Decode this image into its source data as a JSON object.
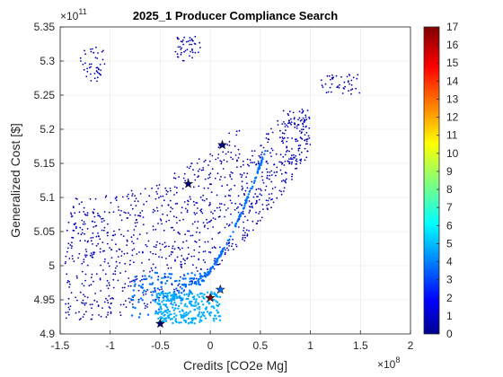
{
  "chart_data": {
    "type": "scatter",
    "title": "2025_1 Producer Compliance Search",
    "xlabel": "Credits [CO2e Mg]",
    "ylabel": "Generalized Cost [$]",
    "x_exponent": "×10^8",
    "x_exponent_base": "×10",
    "x_exponent_power": "8",
    "y_exponent_base": "×10",
    "y_exponent_power": "11",
    "xlim": [
      -1.5,
      2
    ],
    "ylim": [
      4.9,
      5.35
    ],
    "xticks": [
      "-1.5",
      "-1",
      "-0.5",
      "0",
      "0.5",
      "1",
      "1.5",
      "2"
    ],
    "yticks": [
      "4.9",
      "4.95",
      "5",
      "5.05",
      "5.1",
      "5.15",
      "5.2",
      "5.25",
      "5.3",
      "5.35"
    ],
    "grid": true,
    "colorbar": {
      "colormap": "jet",
      "range": [
        0,
        17
      ],
      "ticks": [
        "0",
        "1",
        "2",
        "3",
        "4",
        "5",
        "6",
        "7",
        "8",
        "9",
        "10",
        "11",
        "12",
        "13",
        "14",
        "15",
        "16",
        "17"
      ]
    },
    "clusters": [
      {
        "x0": -1.3,
        "y0": 5.27,
        "x1": -1.05,
        "y1": 5.32,
        "level": 0
      },
      {
        "x0": -0.35,
        "y0": 5.3,
        "x1": -0.1,
        "y1": 5.335,
        "level": 0
      },
      {
        "x0": 1.1,
        "y0": 5.25,
        "x1": 1.5,
        "y1": 5.28,
        "level": 0
      },
      {
        "x0": -1.45,
        "y0": 4.92,
        "x1": 1.0,
        "y1": 5.23,
        "level": 0
      },
      {
        "x0": -0.8,
        "y0": 4.915,
        "x1": 0.55,
        "y1": 4.99,
        "level": 4
      },
      {
        "x0": -0.55,
        "y0": 4.915,
        "x1": 0.1,
        "y1": 4.96,
        "level": 5
      }
    ],
    "highlighted_points": [
      {
        "x": 0.0,
        "y": 4.953,
        "level": 17
      },
      {
        "x": 0.12,
        "y": 5.177,
        "level": 0
      },
      {
        "x": -0.22,
        "y": 5.12,
        "level": 0
      },
      {
        "x": -0.5,
        "y": 4.915,
        "level": 0
      },
      {
        "x": 0.1,
        "y": 4.965,
        "level": 4
      }
    ]
  }
}
